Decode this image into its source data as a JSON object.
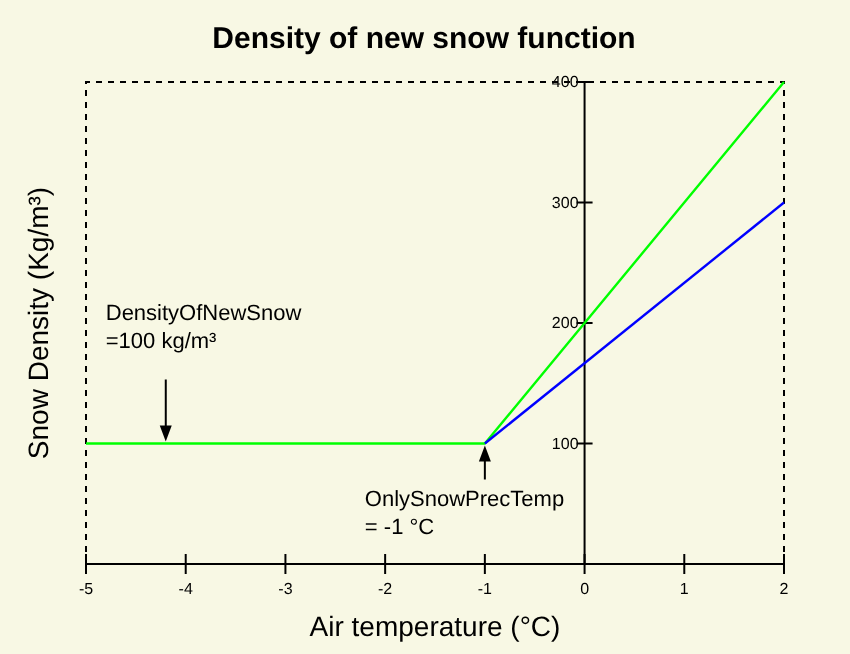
{
  "chart_data": {
    "type": "line",
    "title": "Density of new snow function",
    "xlabel": "Air temperature (°C)",
    "ylabel": "Snow Density (Kg/m³)",
    "xlim": [
      -5,
      2
    ],
    "xticks": [
      -5,
      -4,
      -3,
      -2,
      -1,
      0,
      1,
      2
    ],
    "ylim": [
      0,
      400
    ],
    "yticks": [
      {
        "value": 0,
        "label": null
      },
      100,
      200,
      300,
      400
    ],
    "grid": false,
    "marker": "none",
    "line_style": "solid",
    "series": [
      {
        "color": "#00ff00",
        "x": [
          -5,
          -1,
          2
        ],
        "values": [
          100,
          100,
          400
        ]
      },
      {
        "color": "#0000ff",
        "x": [
          -1,
          2
        ],
        "values": [
          100,
          300
        ]
      }
    ],
    "annotations": [
      {
        "text": "DensityOfNewSnow\n=100 kg/m³",
        "x": -4.2,
        "y": 100
      },
      {
        "text": "OnlySnowPrecTemp\n= -1 °C",
        "x": -1,
        "y": 100
      }
    ]
  }
}
